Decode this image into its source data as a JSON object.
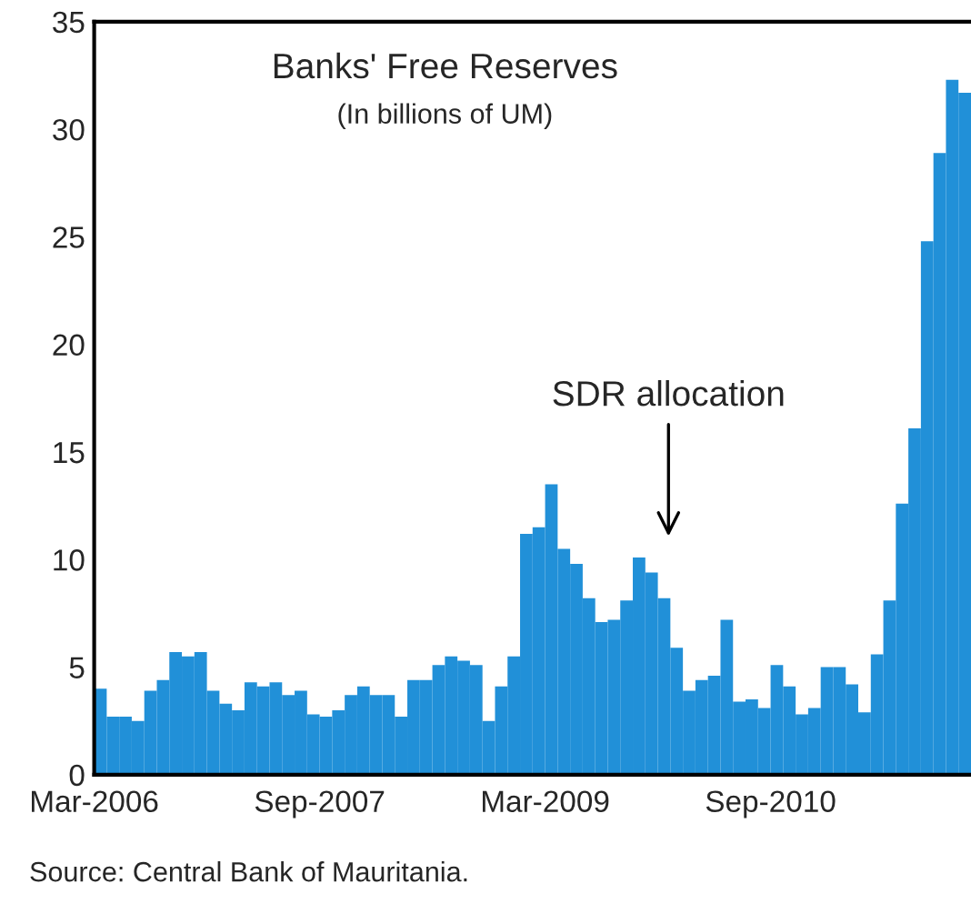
{
  "chart_data": {
    "type": "bar",
    "title": "Banks' Free Reserves",
    "subtitle": "(In billions of UM)",
    "categories": [
      "Mar-2006",
      null,
      null,
      null,
      null,
      null,
      null,
      null,
      null,
      null,
      null,
      null,
      null,
      null,
      null,
      null,
      null,
      null,
      "Sep-2007",
      null,
      null,
      null,
      null,
      null,
      null,
      null,
      null,
      null,
      null,
      null,
      null,
      null,
      null,
      null,
      null,
      null,
      "Mar-2009",
      null,
      null,
      null,
      null,
      null,
      null,
      null,
      null,
      null,
      null,
      null,
      null,
      null,
      null,
      null,
      null,
      null,
      "Sep-2010",
      null,
      null,
      null,
      null,
      null,
      null,
      null,
      null,
      null,
      null,
      null,
      null,
      null,
      null,
      null
    ],
    "values": [
      4.0,
      2.7,
      2.7,
      2.5,
      3.9,
      4.4,
      5.7,
      5.5,
      5.7,
      3.9,
      3.3,
      3.0,
      4.3,
      4.1,
      4.3,
      3.7,
      3.9,
      2.8,
      2.7,
      3.0,
      3.7,
      4.1,
      3.7,
      3.7,
      2.7,
      4.4,
      4.4,
      5.1,
      5.5,
      5.3,
      5.1,
      2.5,
      4.1,
      5.5,
      11.2,
      11.5,
      13.5,
      10.5,
      9.8,
      8.2,
      7.1,
      7.2,
      8.1,
      10.1,
      9.4,
      8.2,
      5.9,
      3.9,
      4.4,
      4.6,
      7.2,
      3.4,
      3.5,
      3.1,
      5.1,
      4.1,
      2.8,
      3.1,
      5.0,
      5.0,
      4.2,
      2.9,
      5.6,
      8.1,
      12.6,
      16.1,
      24.8,
      28.9,
      32.3,
      31.7
    ],
    "color": "#2190d8",
    "ylim": [
      0,
      35
    ],
    "yticks": [
      0,
      5,
      10,
      15,
      20,
      25,
      30,
      35
    ],
    "grid": false,
    "legend": false,
    "annotations": [
      "SDR allocation",
      "Source: Central Bank of Mauritania."
    ]
  }
}
